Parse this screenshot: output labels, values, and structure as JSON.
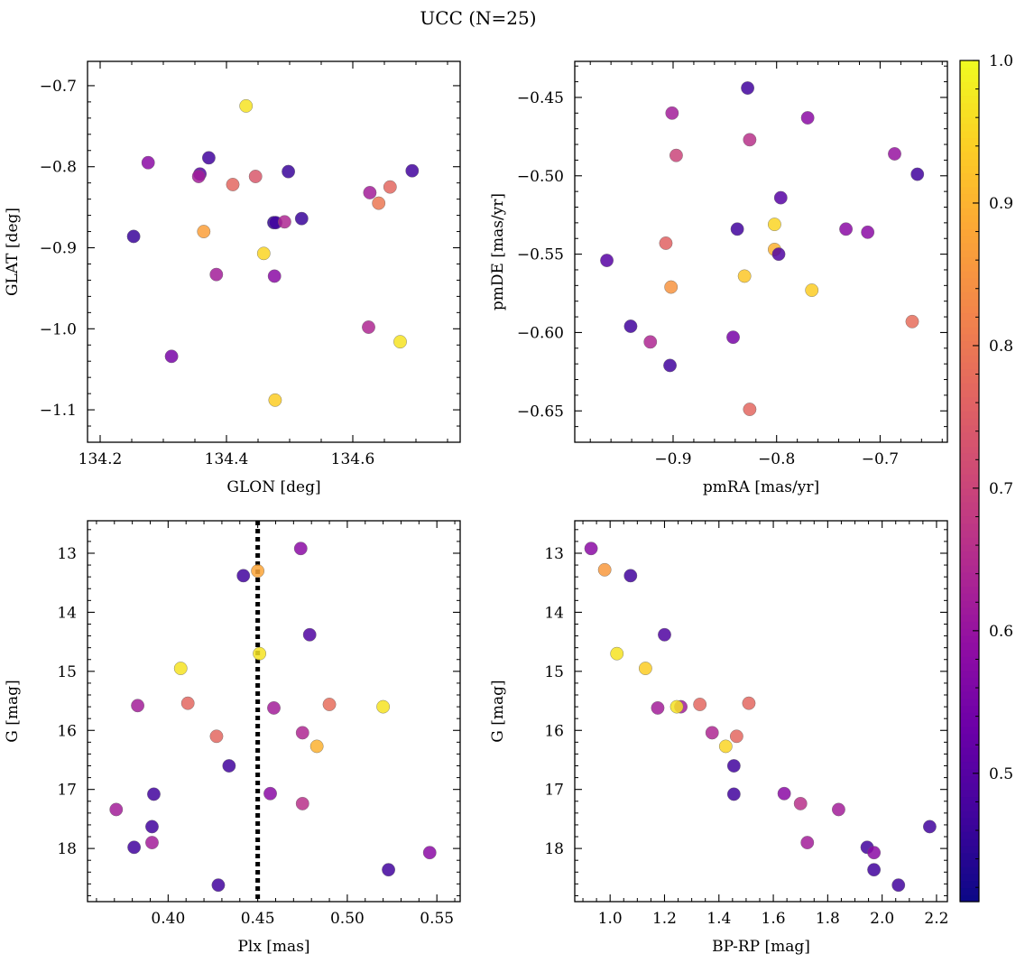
{
  "figure": {
    "title": "UCC (N=25)"
  },
  "colorbar": {
    "colormap": "plasma",
    "range": [
      0.41,
      1.0
    ],
    "ticks": [
      0.5,
      0.6,
      0.7,
      0.8,
      0.9,
      1.0
    ],
    "tick_labels": [
      "0.5",
      "0.6",
      "0.7",
      "0.8",
      "0.9",
      "1.0"
    ]
  },
  "chart_data": [
    {
      "type": "scatter",
      "id": "glon-glat",
      "title": "",
      "xlabel": "GLON [deg]",
      "ylabel": "GLAT [deg]",
      "xlim": [
        134.18,
        134.77
      ],
      "ylim": [
        -1.14,
        -0.67
      ],
      "xticks": [
        134.2,
        134.4,
        134.6
      ],
      "xtick_labels": [
        "134.2",
        "134.4",
        "134.6"
      ],
      "xminor": [
        134.25,
        134.3,
        134.35,
        134.45,
        134.5,
        134.55,
        134.65,
        134.7,
        134.75
      ],
      "yticks": [
        -0.7,
        -0.8,
        -0.9,
        -1.0,
        -1.1
      ],
      "ytick_labels": [
        "−0.7",
        "−0.8",
        "−0.9",
        "−1.0",
        "−1.1"
      ],
      "yminor": [
        -0.72,
        -0.74,
        -0.76,
        -0.78,
        -0.82,
        -0.84,
        -0.86,
        -0.88,
        -0.92,
        -0.94,
        -0.96,
        -0.98,
        -1.02,
        -1.04,
        -1.06,
        -1.08,
        -1.12
      ],
      "y_inverted": false,
      "points": [
        {
          "x": 134.431,
          "y": -0.725,
          "c": 0.97
        },
        {
          "x": 134.276,
          "y": -0.795,
          "c": 0.58
        },
        {
          "x": 134.372,
          "y": -0.789,
          "c": 0.47
        },
        {
          "x": 134.358,
          "y": -0.809,
          "c": 0.5
        },
        {
          "x": 134.356,
          "y": -0.812,
          "c": 0.62
        },
        {
          "x": 134.446,
          "y": -0.812,
          "c": 0.74
        },
        {
          "x": 134.41,
          "y": -0.822,
          "c": 0.77
        },
        {
          "x": 134.498,
          "y": -0.806,
          "c": 0.46
        },
        {
          "x": 134.694,
          "y": -0.805,
          "c": 0.47
        },
        {
          "x": 134.659,
          "y": -0.825,
          "c": 0.77
        },
        {
          "x": 134.627,
          "y": -0.832,
          "c": 0.62
        },
        {
          "x": 134.641,
          "y": -0.845,
          "c": 0.8
        },
        {
          "x": 134.519,
          "y": -0.864,
          "c": 0.46
        },
        {
          "x": 134.475,
          "y": -0.869,
          "c": 0.45
        },
        {
          "x": 134.478,
          "y": -0.869,
          "c": 0.47
        },
        {
          "x": 134.492,
          "y": -0.868,
          "c": 0.64
        },
        {
          "x": 134.253,
          "y": -0.886,
          "c": 0.46
        },
        {
          "x": 134.364,
          "y": -0.88,
          "c": 0.87
        },
        {
          "x": 134.459,
          "y": -0.907,
          "c": 0.95
        },
        {
          "x": 134.384,
          "y": -0.933,
          "c": 0.62
        },
        {
          "x": 134.476,
          "y": -0.935,
          "c": 0.58
        },
        {
          "x": 134.625,
          "y": -0.998,
          "c": 0.64
        },
        {
          "x": 134.675,
          "y": -1.016,
          "c": 0.97
        },
        {
          "x": 134.313,
          "y": -1.034,
          "c": 0.55
        },
        {
          "x": 134.477,
          "y": -1.088,
          "c": 0.94
        }
      ]
    },
    {
      "type": "scatter",
      "id": "pmra-pmde",
      "title": "",
      "xlabel": "pmRA [mas/yr]",
      "ylabel": "pmDE [mas/yr]",
      "xlim": [
        -0.995,
        -0.635
      ],
      "ylim": [
        -0.67,
        -0.427
      ],
      "xticks": [
        -0.9,
        -0.8,
        -0.7
      ],
      "xtick_labels": [
        "−0.9",
        "−0.8",
        "−0.7"
      ],
      "xminor": [
        -0.98,
        -0.96,
        -0.94,
        -0.92,
        -0.88,
        -0.86,
        -0.84,
        -0.82,
        -0.78,
        -0.76,
        -0.74,
        -0.72,
        -0.68,
        -0.66,
        -0.64
      ],
      "yticks": [
        -0.45,
        -0.5,
        -0.55,
        -0.6,
        -0.65
      ],
      "ytick_labels": [
        "−0.45",
        "−0.50",
        "−0.55",
        "−0.60",
        "−0.65"
      ],
      "yminor": [
        -0.43,
        -0.44,
        -0.46,
        -0.47,
        -0.48,
        -0.49,
        -0.51,
        -0.52,
        -0.53,
        -0.54,
        -0.56,
        -0.57,
        -0.58,
        -0.59,
        -0.61,
        -0.62,
        -0.63,
        -0.64,
        -0.66
      ],
      "y_inverted": false,
      "points": [
        {
          "x": -0.828,
          "y": -0.444,
          "c": 0.47
        },
        {
          "x": -0.901,
          "y": -0.46,
          "c": 0.62
        },
        {
          "x": -0.77,
          "y": -0.463,
          "c": 0.58
        },
        {
          "x": -0.826,
          "y": -0.477,
          "c": 0.66
        },
        {
          "x": -0.897,
          "y": -0.487,
          "c": 0.7
        },
        {
          "x": -0.686,
          "y": -0.486,
          "c": 0.6
        },
        {
          "x": -0.664,
          "y": -0.499,
          "c": 0.47
        },
        {
          "x": -0.796,
          "y": -0.514,
          "c": 0.5
        },
        {
          "x": -0.838,
          "y": -0.534,
          "c": 0.47
        },
        {
          "x": -0.802,
          "y": -0.531,
          "c": 0.95
        },
        {
          "x": -0.733,
          "y": -0.534,
          "c": 0.58
        },
        {
          "x": -0.712,
          "y": -0.536,
          "c": 0.58
        },
        {
          "x": -0.907,
          "y": -0.543,
          "c": 0.76
        },
        {
          "x": -0.802,
          "y": -0.547,
          "c": 0.9
        },
        {
          "x": -0.798,
          "y": -0.55,
          "c": 0.49
        },
        {
          "x": -0.964,
          "y": -0.554,
          "c": 0.5
        },
        {
          "x": -0.831,
          "y": -0.564,
          "c": 0.93
        },
        {
          "x": -0.902,
          "y": -0.571,
          "c": 0.85
        },
        {
          "x": -0.766,
          "y": -0.573,
          "c": 0.94
        },
        {
          "x": -0.941,
          "y": -0.596,
          "c": 0.47
        },
        {
          "x": -0.669,
          "y": -0.593,
          "c": 0.78
        },
        {
          "x": -0.842,
          "y": -0.603,
          "c": 0.55
        },
        {
          "x": -0.922,
          "y": -0.606,
          "c": 0.64
        },
        {
          "x": -0.903,
          "y": -0.621,
          "c": 0.47
        },
        {
          "x": -0.826,
          "y": -0.649,
          "c": 0.77
        }
      ]
    },
    {
      "type": "scatter",
      "id": "plx-g",
      "title": "",
      "xlabel": "Plx [mas]",
      "ylabel": "G [mag]",
      "xlim": [
        0.355,
        0.563
      ],
      "ylim": [
        18.9,
        12.45
      ],
      "xticks": [
        0.4,
        0.45,
        0.5,
        0.55
      ],
      "xtick_labels": [
        "0.40",
        "0.45",
        "0.50",
        "0.55"
      ],
      "xminor": [
        0.36,
        0.37,
        0.38,
        0.39,
        0.41,
        0.42,
        0.43,
        0.44,
        0.46,
        0.47,
        0.48,
        0.49,
        0.51,
        0.52,
        0.53,
        0.54,
        0.56
      ],
      "yticks": [
        13,
        14,
        15,
        16,
        17,
        18
      ],
      "ytick_labels": [
        "13",
        "14",
        "15",
        "16",
        "17",
        "18"
      ],
      "yminor": [
        12.6,
        12.8,
        13.2,
        13.4,
        13.6,
        13.8,
        14.2,
        14.4,
        14.6,
        14.8,
        15.2,
        15.4,
        15.6,
        15.8,
        16.2,
        16.4,
        16.6,
        16.8,
        17.2,
        17.4,
        17.6,
        17.8,
        18.2,
        18.4,
        18.6,
        18.8
      ],
      "y_inverted": true,
      "vline": {
        "x": 0.45,
        "style": "dotted"
      },
      "points": [
        {
          "x": 0.474,
          "y": 12.92,
          "c": 0.58
        },
        {
          "x": 0.442,
          "y": 13.38,
          "c": 0.47
        },
        {
          "x": 0.45,
          "y": 13.3,
          "c": 0.88
        },
        {
          "x": 0.479,
          "y": 14.38,
          "c": 0.49
        },
        {
          "x": 0.451,
          "y": 14.7,
          "c": 0.97
        },
        {
          "x": 0.407,
          "y": 14.95,
          "c": 0.97
        },
        {
          "x": 0.383,
          "y": 15.58,
          "c": 0.62
        },
        {
          "x": 0.411,
          "y": 15.54,
          "c": 0.77
        },
        {
          "x": 0.459,
          "y": 15.62,
          "c": 0.62
        },
        {
          "x": 0.49,
          "y": 15.56,
          "c": 0.78
        },
        {
          "x": 0.52,
          "y": 15.6,
          "c": 0.97
        },
        {
          "x": 0.427,
          "y": 16.1,
          "c": 0.77
        },
        {
          "x": 0.475,
          "y": 16.04,
          "c": 0.64
        },
        {
          "x": 0.483,
          "y": 16.27,
          "c": 0.9
        },
        {
          "x": 0.434,
          "y": 16.6,
          "c": 0.47
        },
        {
          "x": 0.392,
          "y": 17.08,
          "c": 0.47
        },
        {
          "x": 0.457,
          "y": 17.07,
          "c": 0.58
        },
        {
          "x": 0.371,
          "y": 17.34,
          "c": 0.62
        },
        {
          "x": 0.475,
          "y": 17.24,
          "c": 0.66
        },
        {
          "x": 0.391,
          "y": 17.63,
          "c": 0.47
        },
        {
          "x": 0.381,
          "y": 17.98,
          "c": 0.47
        },
        {
          "x": 0.391,
          "y": 17.9,
          "c": 0.62
        },
        {
          "x": 0.546,
          "y": 18.07,
          "c": 0.58
        },
        {
          "x": 0.523,
          "y": 18.36,
          "c": 0.47
        },
        {
          "x": 0.428,
          "y": 18.62,
          "c": 0.47
        }
      ]
    },
    {
      "type": "scatter",
      "id": "bprp-g",
      "title": "",
      "xlabel": "BP-RP [mag]",
      "ylabel": "G [mag]",
      "xlim": [
        0.87,
        2.24
      ],
      "ylim": [
        18.9,
        12.45
      ],
      "xticks": [
        1.0,
        1.2,
        1.4,
        1.6,
        1.8,
        2.0,
        2.2
      ],
      "xtick_labels": [
        "1.0",
        "1.2",
        "1.4",
        "1.6",
        "1.8",
        "2.0",
        "2.2"
      ],
      "xminor": [
        0.9,
        0.95,
        1.05,
        1.1,
        1.15,
        1.25,
        1.3,
        1.35,
        1.45,
        1.5,
        1.55,
        1.65,
        1.7,
        1.75,
        1.85,
        1.9,
        1.95,
        2.05,
        2.1,
        2.15
      ],
      "yticks": [
        13,
        14,
        15,
        16,
        17,
        18
      ],
      "ytick_labels": [
        "13",
        "14",
        "15",
        "16",
        "17",
        "18"
      ],
      "yminor": [
        12.6,
        12.8,
        13.2,
        13.4,
        13.6,
        13.8,
        14.2,
        14.4,
        14.6,
        14.8,
        15.2,
        15.4,
        15.6,
        15.8,
        16.2,
        16.4,
        16.6,
        16.8,
        17.2,
        17.4,
        17.6,
        17.8,
        18.2,
        18.4,
        18.6,
        18.8
      ],
      "y_inverted": true,
      "points": [
        {
          "x": 0.93,
          "y": 12.92,
          "c": 0.58
        },
        {
          "x": 0.98,
          "y": 13.28,
          "c": 0.86
        },
        {
          "x": 1.075,
          "y": 13.38,
          "c": 0.47
        },
        {
          "x": 1.2,
          "y": 14.38,
          "c": 0.49
        },
        {
          "x": 1.025,
          "y": 14.7,
          "c": 0.97
        },
        {
          "x": 1.13,
          "y": 14.95,
          "c": 0.94
        },
        {
          "x": 1.175,
          "y": 15.62,
          "c": 0.62
        },
        {
          "x": 1.26,
          "y": 15.6,
          "c": 0.62
        },
        {
          "x": 1.245,
          "y": 15.6,
          "c": 0.97
        },
        {
          "x": 1.33,
          "y": 15.56,
          "c": 0.77
        },
        {
          "x": 1.51,
          "y": 15.54,
          "c": 0.77
        },
        {
          "x": 1.375,
          "y": 16.04,
          "c": 0.64
        },
        {
          "x": 1.465,
          "y": 16.1,
          "c": 0.77
        },
        {
          "x": 1.425,
          "y": 16.27,
          "c": 0.95
        },
        {
          "x": 1.455,
          "y": 16.6,
          "c": 0.47
        },
        {
          "x": 1.455,
          "y": 17.08,
          "c": 0.47
        },
        {
          "x": 1.64,
          "y": 17.07,
          "c": 0.58
        },
        {
          "x": 1.7,
          "y": 17.24,
          "c": 0.66
        },
        {
          "x": 1.84,
          "y": 17.34,
          "c": 0.62
        },
        {
          "x": 2.175,
          "y": 17.63,
          "c": 0.47
        },
        {
          "x": 1.725,
          "y": 17.9,
          "c": 0.62
        },
        {
          "x": 1.945,
          "y": 17.98,
          "c": 0.47
        },
        {
          "x": 1.97,
          "y": 18.07,
          "c": 0.58
        },
        {
          "x": 1.97,
          "y": 18.36,
          "c": 0.47
        },
        {
          "x": 2.06,
          "y": 18.62,
          "c": 0.47
        }
      ]
    }
  ]
}
